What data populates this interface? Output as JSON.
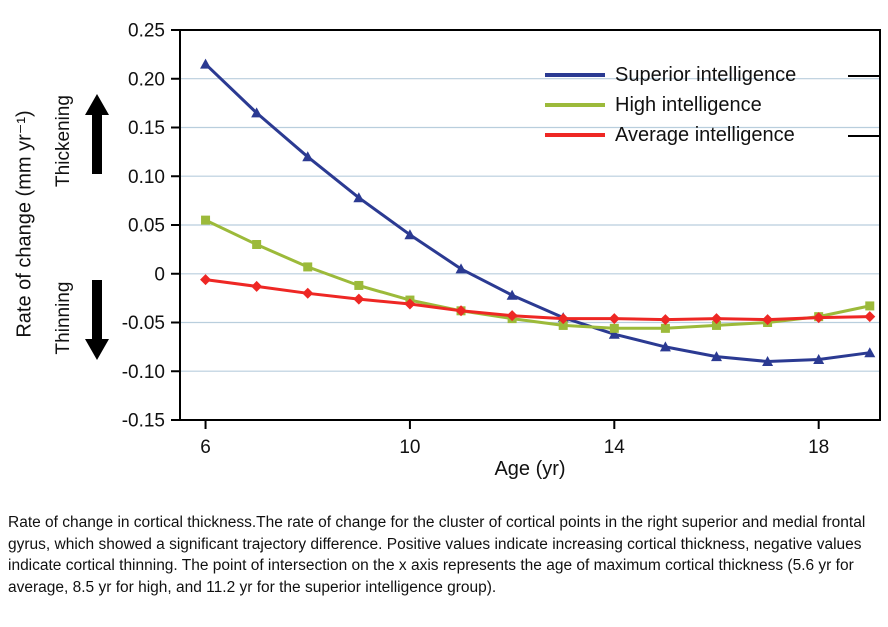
{
  "axes": {
    "x_label": "Age (yr)",
    "y_label": "Rate of change (mm yr⁻¹)",
    "thickening": "Thickening",
    "thinning": "Thinning"
  },
  "chart_data": {
    "type": "line",
    "title": "",
    "xlabel": "Age (yr)",
    "ylabel": "Rate of change (mm yr⁻¹)",
    "xlim": [
      5.5,
      19.2
    ],
    "ylim": [
      -0.15,
      0.25
    ],
    "x_ticks": [
      6,
      10,
      14,
      18
    ],
    "x_tick_labels": [
      "6",
      "10",
      "14",
      "18"
    ],
    "y_ticks": [
      0.25,
      0.2,
      0.15,
      0.1,
      0.05,
      0,
      -0.05,
      -0.1,
      -0.15
    ],
    "y_tick_labels": [
      "0.25",
      "0.20",
      "0.15",
      "0.10",
      "0.05",
      "0",
      "-0.05",
      "-0.10",
      "-0.15"
    ],
    "grid": "horizontal",
    "grid_color": "#b9cedd",
    "axis_color": "#000000",
    "legend_position": "top-right-inside",
    "x": [
      6,
      7,
      8,
      9,
      10,
      11,
      12,
      13,
      14,
      15,
      16,
      17,
      18,
      19
    ],
    "series": [
      {
        "name": "Superior intelligence",
        "color": "#2b3a92",
        "marker": "triangle",
        "values": [
          0.215,
          0.165,
          0.12,
          0.078,
          0.04,
          0.005,
          -0.022,
          -0.045,
          -0.062,
          -0.075,
          -0.085,
          -0.09,
          -0.088,
          -0.081
        ]
      },
      {
        "name": "High intelligence",
        "color": "#9cba3a",
        "marker": "square",
        "values": [
          0.055,
          0.03,
          0.007,
          -0.012,
          -0.027,
          -0.038,
          -0.046,
          -0.053,
          -0.056,
          -0.056,
          -0.053,
          -0.05,
          -0.044,
          -0.033
        ]
      },
      {
        "name": "Average intelligence",
        "color": "#ee2724",
        "marker": "diamond",
        "values": [
          -0.006,
          -0.013,
          -0.02,
          -0.026,
          -0.031,
          -0.038,
          -0.043,
          -0.046,
          -0.046,
          -0.047,
          -0.046,
          -0.047,
          -0.045,
          -0.044
        ]
      }
    ],
    "intersection_note": {
      "average_yr": "5.6",
      "high_yr": "8.5",
      "superior_yr": "11.2"
    }
  },
  "caption": "Rate of change in cortical thickness.The rate of change for the cluster of cortical points in the right superior and medial frontal gyrus, which showed a significant trajectory difference. Positive values indicate increasing cortical thickness, negative values indicate cortical thinning. The point of intersection on the x axis represents the age of maximum cortical thickness (5.6 yr for average, 8.5 yr for high, and 11.2 yr for the superior intelligence group)."
}
